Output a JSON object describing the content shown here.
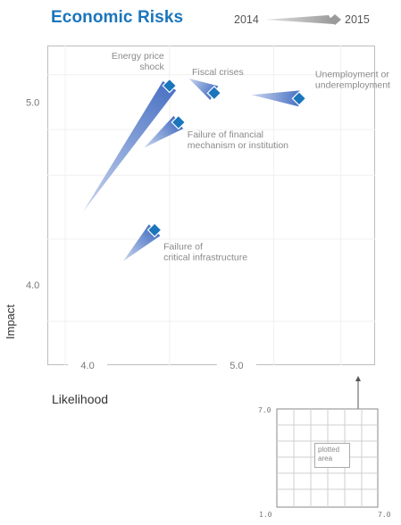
{
  "title": "Economic Risks",
  "legend": {
    "start": "2014",
    "end": "2015"
  },
  "colors": {
    "accent": "#1b75bb",
    "arrow_light": "#c9d5ee",
    "arrow_dark": "#4a72c4",
    "marker": "#1b75bb"
  },
  "chart_data": {
    "type": "scatter",
    "xlabel": "Likelihood",
    "ylabel": "Impact",
    "xlim": [
      3.73,
      5.93
    ],
    "ylim": [
      3.56,
      5.31
    ],
    "x_ticks": [
      "4.0",
      "5.0"
    ],
    "x_tick_values": [
      4.0,
      5.0
    ],
    "y_ticks": [
      "4.0",
      "5.0"
    ],
    "y_tick_values": [
      4.0,
      5.0
    ],
    "grid": true,
    "series": [
      {
        "label": [
          "Energy price",
          "shock"
        ],
        "from": [
          3.97,
          4.4
        ],
        "to": [
          4.55,
          5.09
        ]
      },
      {
        "label": [
          "Fiscal crises"
        ],
        "from": [
          4.68,
          5.13
        ],
        "to": [
          4.85,
          5.05
        ]
      },
      {
        "label": [
          "Unemployment or",
          "underemployment"
        ],
        "from": [
          5.1,
          5.04
        ],
        "to": [
          5.42,
          5.02
        ]
      },
      {
        "label": [
          "Failure of financial",
          "mechanism or institution"
        ],
        "from": [
          4.38,
          4.75
        ],
        "to": [
          4.61,
          4.89
        ]
      },
      {
        "label": [
          "Failure of",
          "critical infrastructure"
        ],
        "from": [
          4.24,
          4.13
        ],
        "to": [
          4.45,
          4.3
        ]
      }
    ]
  },
  "inset": {
    "y_top": "7.0",
    "x_left": "1.0",
    "x_right": "7.0",
    "label_line1": "plotted",
    "label_line2": "area"
  }
}
